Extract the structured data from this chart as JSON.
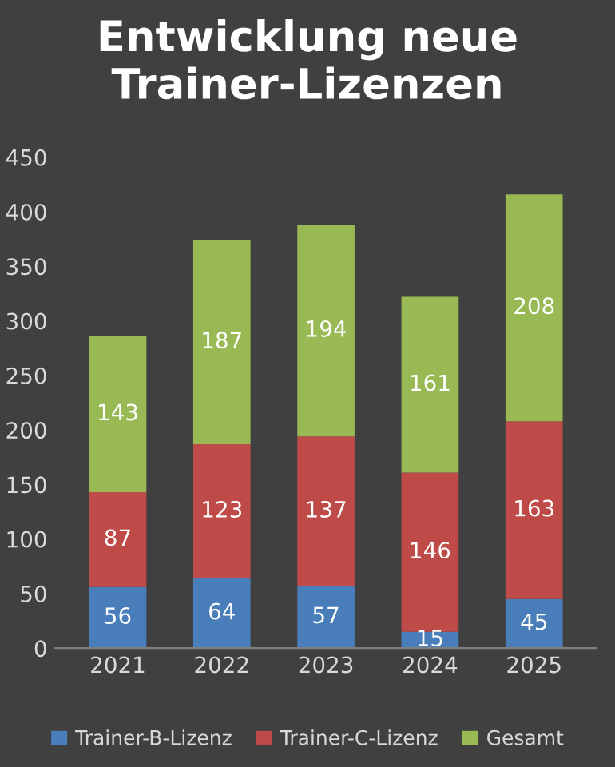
{
  "chart_data": {
    "type": "bar",
    "title": "Entwicklung neue Trainer-Lizenzen",
    "categories": [
      "2021",
      "2022",
      "2023",
      "2024",
      "2025"
    ],
    "series": [
      {
        "name": "Trainer-B-Lizenz",
        "color": "#4a7ebb",
        "values": [
          56,
          64,
          57,
          15,
          45
        ]
      },
      {
        "name": "Trainer-C-Lizenz",
        "color": "#be4b48",
        "values": [
          87,
          123,
          137,
          146,
          163
        ]
      },
      {
        "name": "Gesamt",
        "color": "#98b954",
        "values": [
          143,
          187,
          194,
          161,
          208
        ]
      }
    ],
    "stacked": true,
    "ylim": [
      0,
      450
    ],
    "yticks": [
      0,
      50,
      100,
      150,
      200,
      250,
      300,
      350,
      400,
      450
    ],
    "grid": false,
    "legend": "bottom",
    "data_labels": true
  }
}
